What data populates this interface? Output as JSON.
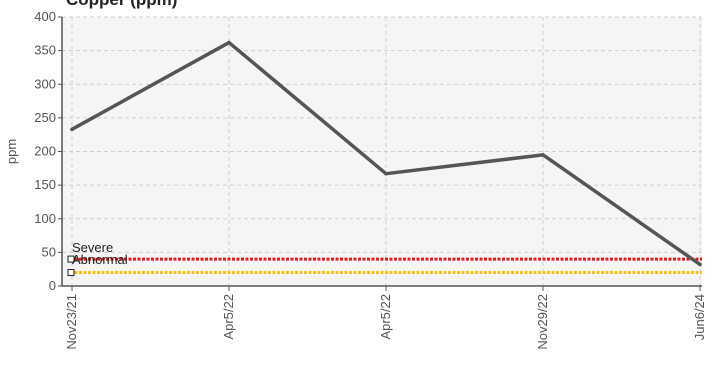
{
  "chart_data": {
    "type": "line",
    "title": "Copper (ppm)",
    "xlabel": "",
    "ylabel": "ppm",
    "ylim": [
      0,
      400
    ],
    "yticks": [
      0,
      50,
      100,
      150,
      200,
      250,
      300,
      350,
      400
    ],
    "grid": true,
    "categories": [
      "Nov23/21",
      "Apr5/22",
      "Apr5/22",
      "Nov29/22",
      "Jun6/24"
    ],
    "series": [
      {
        "values": [
          233,
          362,
          167,
          195,
          32
        ],
        "color": "#555555"
      }
    ],
    "thresholds": [
      {
        "name": "Severe",
        "value": 40,
        "color": "#e31a1c"
      },
      {
        "name": "Abnormal",
        "value": 20,
        "color": "#f2c21b"
      }
    ]
  }
}
